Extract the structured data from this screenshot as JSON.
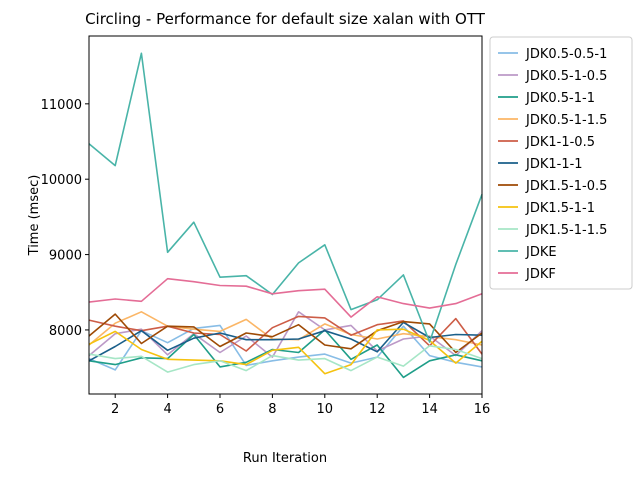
{
  "chart_data": {
    "type": "line",
    "title": "Circling - Performance for default size xalan with OTT",
    "xlabel": "Run Iteration",
    "ylabel": "Time (msec)",
    "xlim": [
      1,
      16
    ],
    "ylim": [
      7150,
      11900
    ],
    "xticks": [
      2,
      4,
      6,
      8,
      10,
      12,
      14,
      16
    ],
    "yticks": [
      8000,
      9000,
      10000,
      11000
    ],
    "x": [
      1,
      2,
      3,
      4,
      5,
      6,
      7,
      8,
      9,
      10,
      11,
      12,
      13,
      14,
      15,
      16
    ],
    "legend_position": "outside-right",
    "grid": false,
    "series": [
      {
        "name": "JDK0.5-0.5-1",
        "color": "#88bde6",
        "values": [
          7620,
          7470,
          7990,
          7830,
          8020,
          8060,
          7530,
          7590,
          7640,
          7680,
          7560,
          7640,
          8050,
          7660,
          7570,
          7510
        ]
      },
      {
        "name": "JDK0.5-1-0.5",
        "color": "#bc99c7",
        "values": [
          7660,
          7950,
          8010,
          7670,
          7950,
          7700,
          7920,
          7640,
          8240,
          8000,
          8060,
          7720,
          7880,
          7920,
          7660,
          7990
        ]
      },
      {
        "name": "JDK0.5-1-1",
        "color": "#1f9e89",
        "values": [
          7590,
          7540,
          7630,
          7620,
          7940,
          7510,
          7570,
          7740,
          7700,
          8000,
          7610,
          7800,
          7370,
          7590,
          7670,
          7590
        ]
      },
      {
        "name": "JDK0.5-1-1.5",
        "color": "#fbb666",
        "values": [
          7800,
          8090,
          8240,
          8050,
          8010,
          7980,
          8140,
          7880,
          7870,
          8080,
          7940,
          7880,
          7950,
          7910,
          7870,
          7800
        ]
      },
      {
        "name": "JDK1-1-0.5",
        "color": "#cd5d47",
        "values": [
          8130,
          8050,
          7990,
          8050,
          7960,
          7940,
          7720,
          8030,
          8180,
          8160,
          7930,
          8070,
          8120,
          7790,
          8150,
          7680
        ]
      },
      {
        "name": "JDK1-1-1",
        "color": "#1a5f8a",
        "values": [
          7590,
          7780,
          7990,
          7730,
          7890,
          7960,
          7870,
          7870,
          7880,
          7990,
          7880,
          7710,
          8100,
          7900,
          7940,
          7930
        ]
      },
      {
        "name": "JDK1.5-1-0.5",
        "color": "#9e4a05",
        "values": [
          7920,
          8210,
          7820,
          8050,
          8040,
          7780,
          7960,
          7910,
          8070,
          7800,
          7750,
          7990,
          8110,
          8080,
          7700,
          7960
        ]
      },
      {
        "name": "JDK1.5-1-1",
        "color": "#f5c20f",
        "values": [
          7810,
          7980,
          7740,
          7610,
          7600,
          7590,
          7540,
          7730,
          7770,
          7420,
          7540,
          8000,
          8010,
          7860,
          7560,
          7850
        ]
      },
      {
        "name": "JDK1.5-1-1.5",
        "color": "#a6e6c6",
        "values": [
          7680,
          7620,
          7650,
          7440,
          7540,
          7590,
          7460,
          7660,
          7600,
          7620,
          7460,
          7640,
          7520,
          7790,
          7740,
          7620
        ]
      },
      {
        "name": "JDKE",
        "color": "#49b4a8",
        "values": [
          10470,
          10180,
          11670,
          9030,
          9430,
          8700,
          8720,
          8470,
          8890,
          9130,
          8270,
          8400,
          8730,
          7840,
          8870,
          9800
        ]
      },
      {
        "name": "JDKF",
        "color": "#e46d96",
        "values": [
          8370,
          8410,
          8380,
          8680,
          8640,
          8590,
          8580,
          8480,
          8520,
          8540,
          8170,
          8440,
          8350,
          8290,
          8350,
          8480
        ]
      }
    ]
  }
}
